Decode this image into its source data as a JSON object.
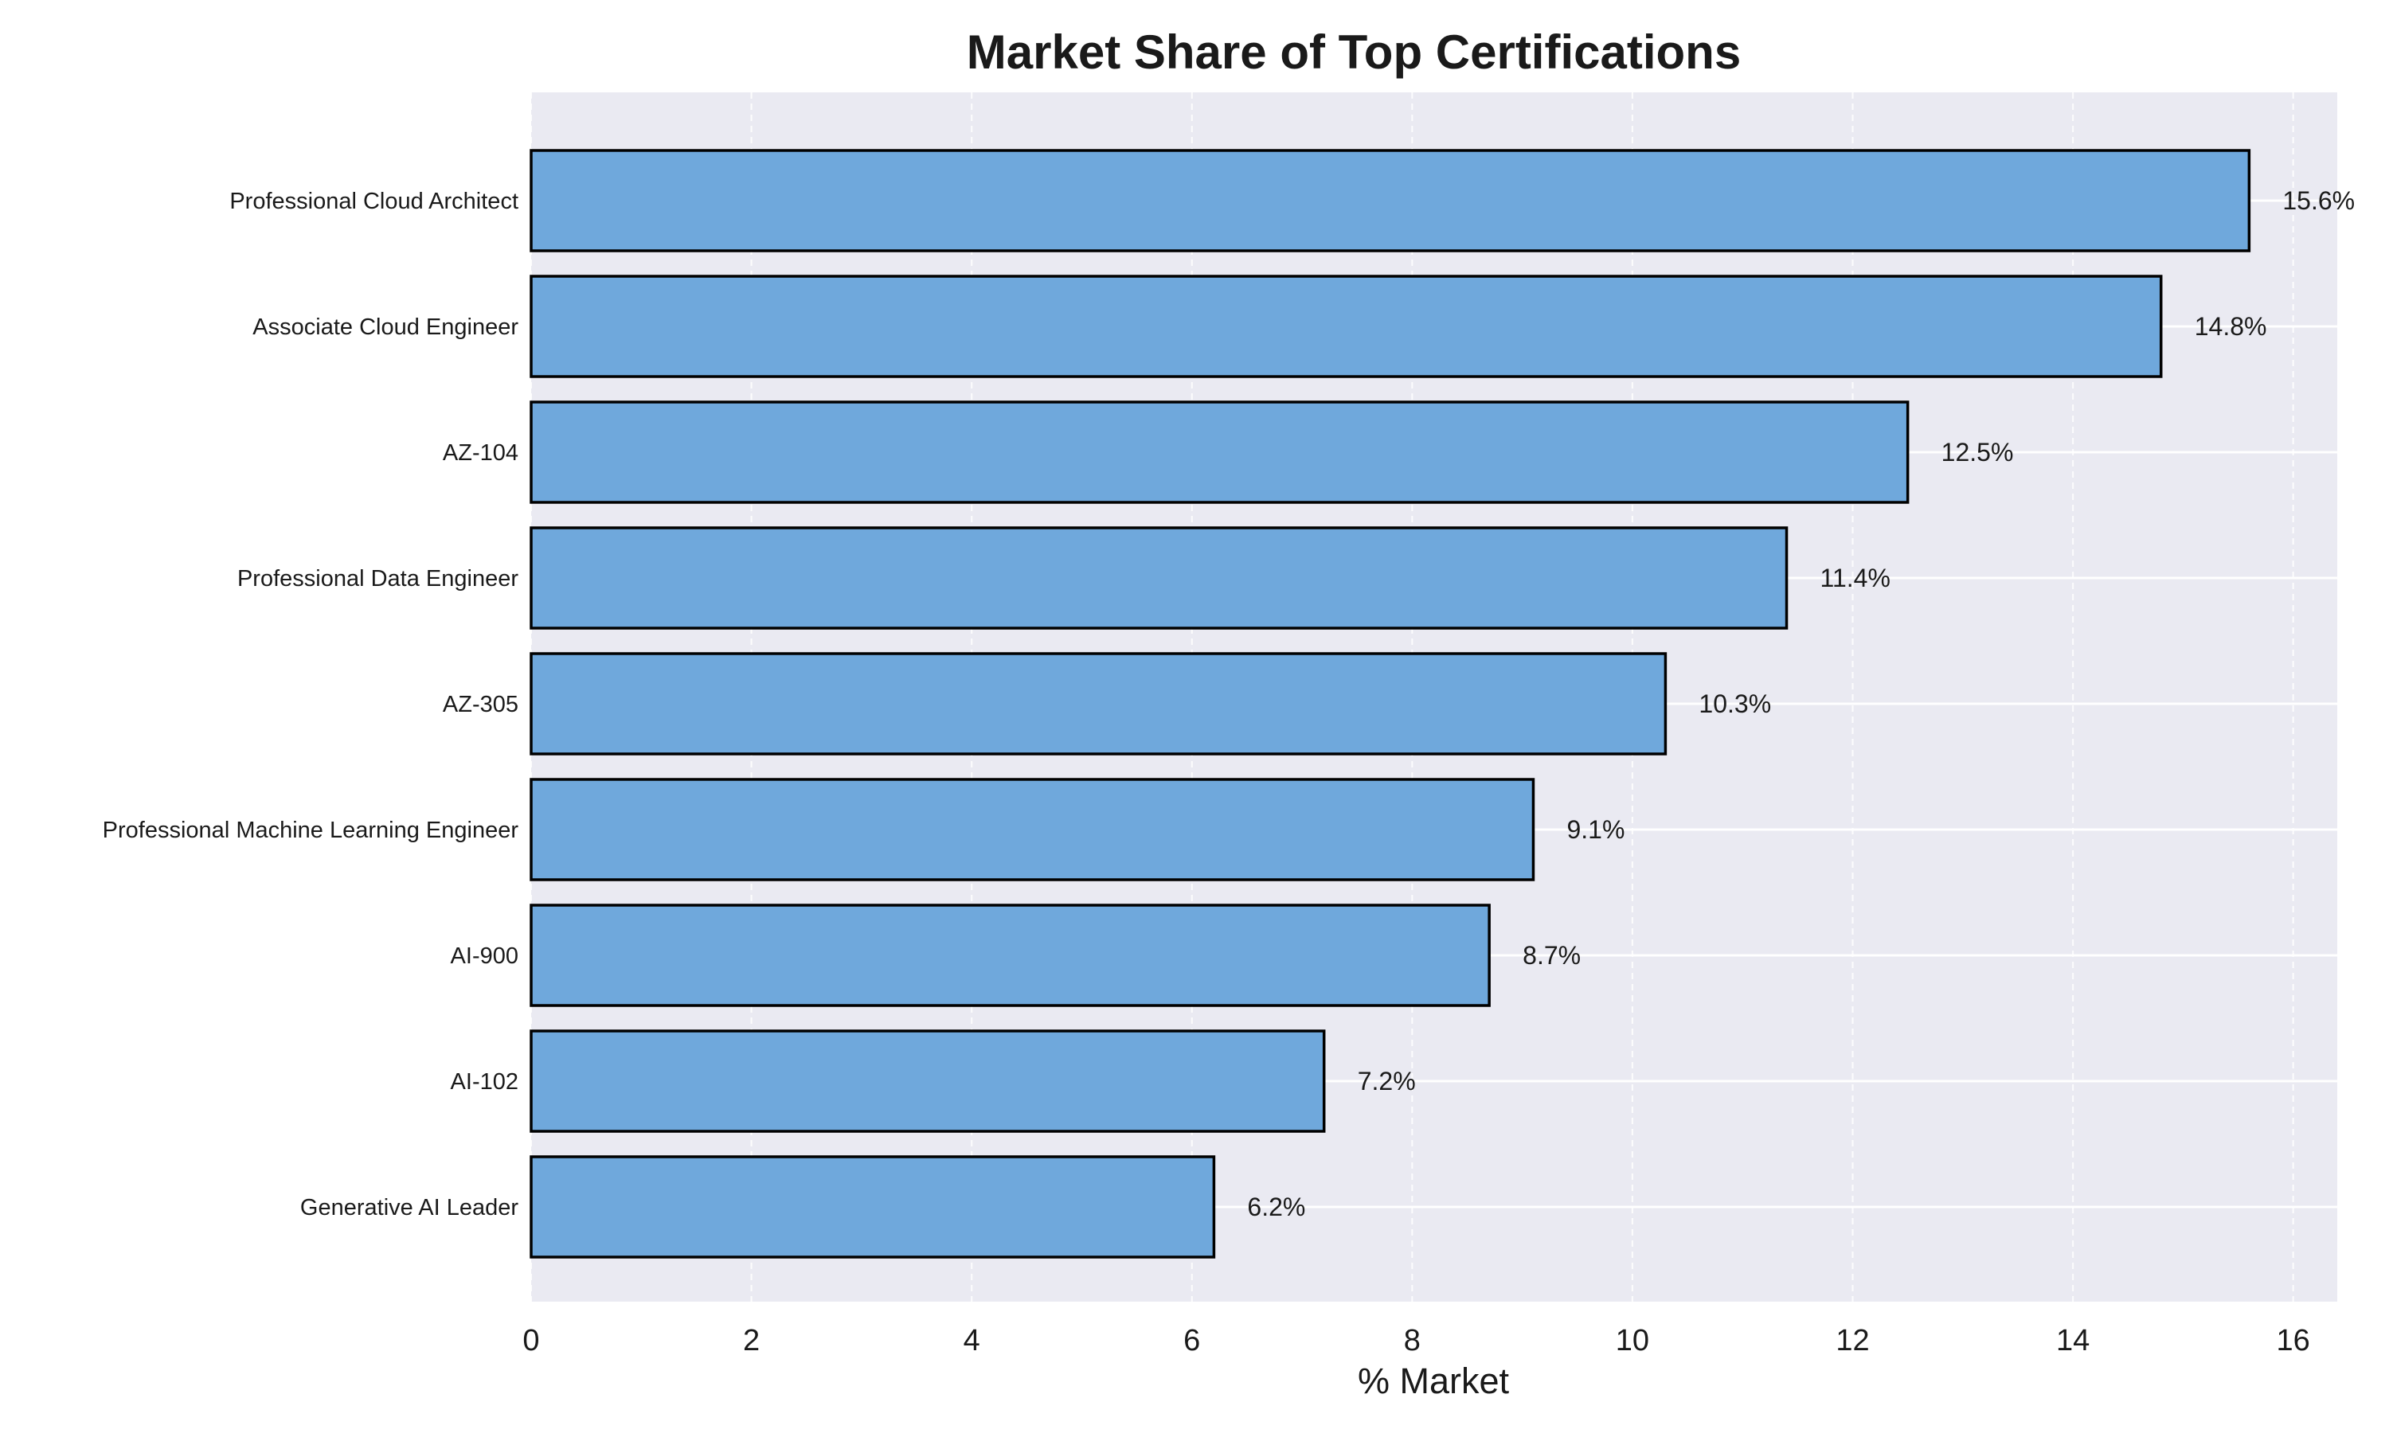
{
  "chart_data": {
    "type": "bar",
    "orientation": "horizontal",
    "title": "Market Share of Top Certifications",
    "xlabel": "% Market",
    "ylabel": "",
    "xlim": [
      0,
      16.4
    ],
    "xticks": [
      0,
      2,
      4,
      6,
      8,
      10,
      12,
      14,
      16
    ],
    "categories": [
      "Professional Cloud Architect",
      "Associate Cloud Engineer",
      "AZ-104",
      "Professional Data Engineer",
      "AZ-305",
      "Professional Machine Learning Engineer",
      "AI-900",
      "AI-102",
      "Generative AI Leader"
    ],
    "values": [
      15.6,
      14.8,
      12.5,
      11.4,
      10.3,
      9.1,
      8.7,
      7.2,
      6.2
    ],
    "value_labels": [
      "15.6%",
      "14.8%",
      "12.5%",
      "11.4%",
      "10.3%",
      "9.1%",
      "8.7%",
      "7.2%",
      "6.2%"
    ],
    "grid": true,
    "colors": {
      "bar": "#6fa8dc",
      "bar_edge": "#000000",
      "plot_background": "#eaeaf2",
      "grid": "#ffffff",
      "text": "#1a1a1a"
    }
  }
}
